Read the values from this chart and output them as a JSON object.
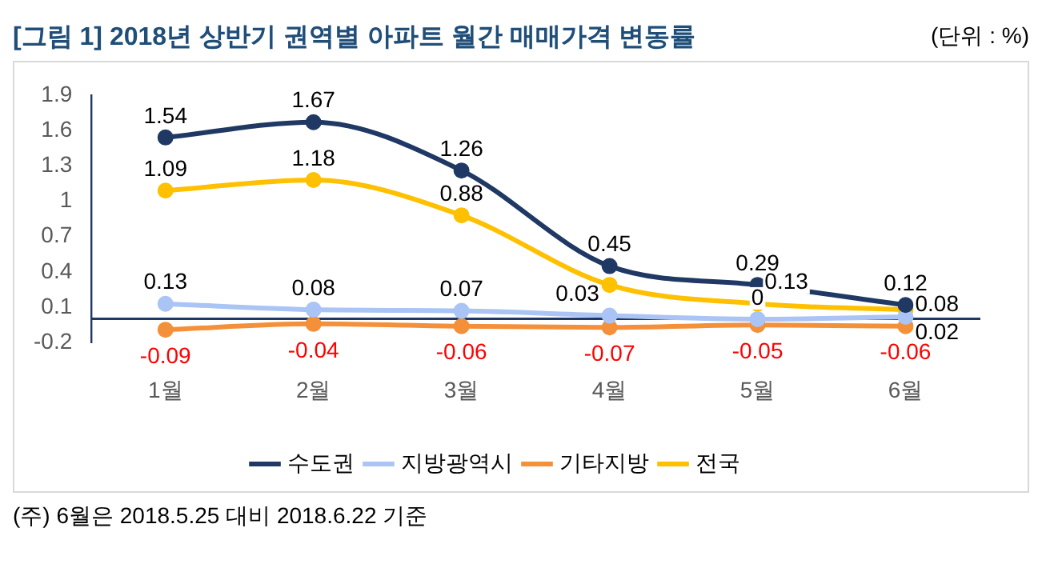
{
  "chart_data": {
    "type": "line",
    "title": "[그림 1] 2018년 상반기 권역별 아파트 월간 매매가격 변동률",
    "annotations": [
      "(단위 : %)",
      "(주) 6월은 2018.5.25 대비 2018.6.22 기준"
    ],
    "categories": [
      "1월",
      "2월",
      "3월",
      "4월",
      "5월",
      "6월"
    ],
    "series": [
      {
        "name": "수도권",
        "color": "#1f3864",
        "values": [
          1.54,
          1.67,
          1.26,
          0.45,
          0.29,
          0.12
        ],
        "value_labels": [
          "1.54",
          "1.67",
          "1.26",
          "0.45",
          "0.29",
          "0.12"
        ]
      },
      {
        "name": "지방광역시",
        "color": "#a9c4f5",
        "values": [
          0.13,
          0.08,
          0.07,
          0.03,
          0,
          0.02
        ],
        "value_labels": [
          "0.13",
          "0.08",
          "0.07",
          "0.03",
          "0",
          "0.02"
        ]
      },
      {
        "name": "기타지방",
        "color": "#f4903a",
        "values": [
          -0.09,
          -0.04,
          -0.06,
          -0.07,
          -0.05,
          -0.06
        ],
        "value_labels": [
          "-0.09",
          "-0.04",
          "-0.06",
          "-0.07",
          "-0.05",
          "-0.06"
        ]
      },
      {
        "name": "전국",
        "color": "#ffc000",
        "values": [
          1.09,
          1.18,
          0.88,
          0.29,
          0.13,
          0.08
        ],
        "value_labels": [
          "1.09",
          "1.18",
          "0.88",
          null,
          "0.13",
          "0.08"
        ]
      }
    ],
    "ylim": [
      -0.2,
      1.9
    ],
    "yticks": [
      -0.2,
      0.1,
      0.4,
      0.7,
      1,
      1.3,
      1.6,
      1.9
    ],
    "grid": false,
    "legend": "bottom",
    "marker": "circle",
    "line_style": "solid"
  }
}
